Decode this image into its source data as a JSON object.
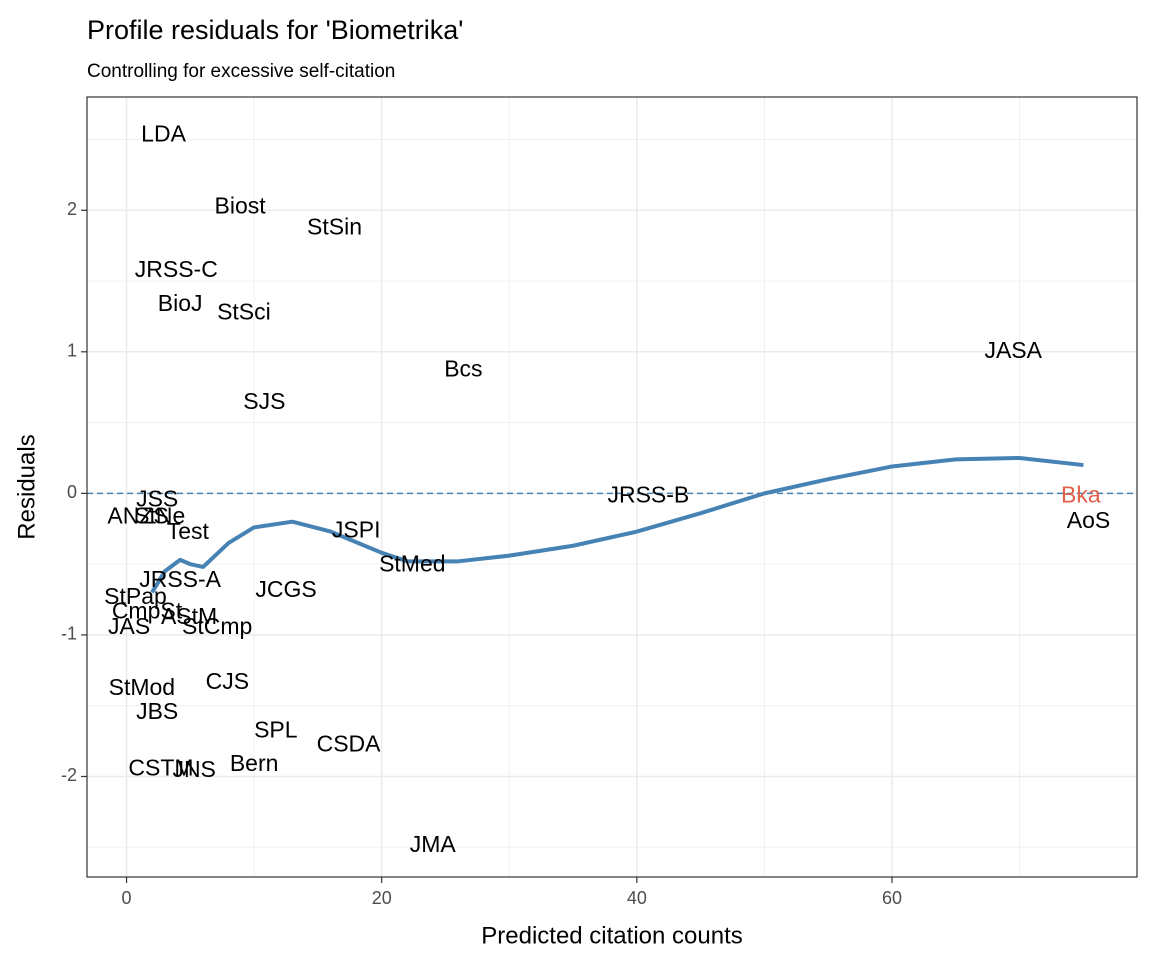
{
  "chart_data": {
    "type": "scatter",
    "title": "Profile residuals for 'Biometrika'",
    "subtitle": "Controlling for excessive self-citation",
    "xlabel": "Predicted citation counts",
    "ylabel": "Residuals",
    "xlim": [
      -3.1,
      79.2
    ],
    "ylim": [
      -2.71,
      2.8
    ],
    "xticks": [
      0,
      20,
      40,
      60
    ],
    "yticks": [
      -2,
      -1,
      0,
      1,
      2
    ],
    "xminor": [
      10,
      30,
      50,
      70
    ],
    "yminor": [
      -2.5,
      -1.5,
      -0.5,
      0.5,
      1.5,
      2.5
    ],
    "grid": true,
    "hline": 0,
    "color": "#000000",
    "highlight": "Bka",
    "highlight_color": "#e0604a",
    "points": {
      "labels": [
        "LDA",
        "Biost",
        "StSin",
        "JRSS-C",
        "BioJ",
        "StSci",
        "JASA",
        "Bcs",
        "SJS",
        "JRSS-B",
        "Bka",
        "AoS",
        "JSS",
        "ANZS",
        "StNe",
        "Test",
        "JSPI",
        "StMed",
        "JCGS",
        "JRSS-A",
        "StPap",
        "CmpSt",
        "AStM",
        "StCmp",
        "JAS",
        "CJS",
        "StMod",
        "JBS",
        "SPL",
        "CSDA",
        "Bern",
        "CSTM",
        "JNS",
        "JMA"
      ],
      "x": [
        2.9,
        8.9,
        16.3,
        3.9,
        4.2,
        9.2,
        69.5,
        26.4,
        10.8,
        40.9,
        74.8,
        75.4,
        2.4,
        0.9,
        2.6,
        4.8,
        18.0,
        22.4,
        12.5,
        4.2,
        0.7,
        1.6,
        4.9,
        7.1,
        0.2,
        7.9,
        1.2,
        2.4,
        11.7,
        17.4,
        10.0,
        2.7,
        5.3,
        24.0
      ],
      "values": [
        2.53,
        2.02,
        1.87,
        1.57,
        1.33,
        1.27,
        1.0,
        0.87,
        0.64,
        -0.02,
        -0.02,
        -0.2,
        -0.05,
        -0.17,
        -0.17,
        -0.28,
        -0.27,
        -0.51,
        -0.69,
        -0.62,
        -0.74,
        -0.84,
        -0.88,
        -0.95,
        -0.95,
        -1.34,
        -1.38,
        -1.55,
        -1.68,
        -1.78,
        -1.92,
        -1.95,
        -1.96,
        -2.49
      ]
    },
    "smooth": {
      "color": "#4682b4",
      "x": [
        2,
        3,
        4.2,
        5,
        6,
        8,
        10,
        13,
        16,
        20,
        22,
        26,
        30,
        35,
        40,
        45,
        50,
        55,
        60,
        65,
        70,
        75
      ],
      "values": [
        -0.7,
        -0.55,
        -0.47,
        -0.5,
        -0.52,
        -0.35,
        -0.24,
        -0.2,
        -0.27,
        -0.42,
        -0.48,
        -0.48,
        -0.44,
        -0.37,
        -0.27,
        -0.14,
        0.0,
        0.1,
        0.19,
        0.24,
        0.25,
        0.2
      ]
    }
  }
}
